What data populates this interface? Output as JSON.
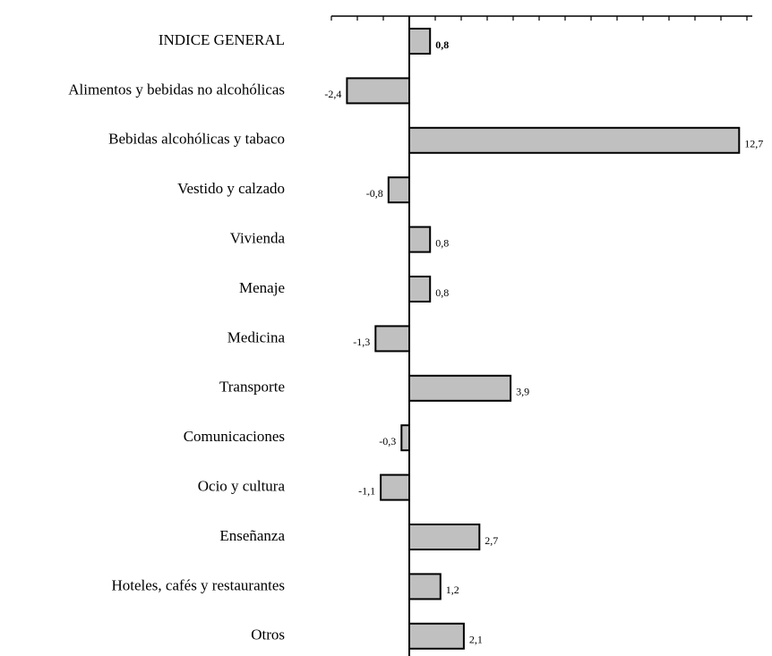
{
  "chart_data": {
    "type": "bar",
    "orientation": "horizontal",
    "categories": [
      "INDICE GENERAL",
      "Alimentos y bebidas no alcohólicas",
      "Bebidas alcohólicas y tabaco",
      "Vestido y calzado",
      "Vivienda",
      "Menaje",
      "Medicina",
      "Transporte",
      "Comunicaciones",
      "Ocio y cultura",
      "Enseñanza",
      "Hoteles, cafés y restaurantes",
      "Otros"
    ],
    "values": [
      0.8,
      -2.4,
      12.7,
      -0.8,
      0.8,
      0.8,
      -1.3,
      3.9,
      -0.3,
      -1.1,
      2.7,
      1.2,
      2.1
    ],
    "value_labels": [
      "0,8",
      "-2,4",
      "12,7",
      "-0,8",
      "0,8",
      "0,8",
      "-1,3",
      "3,9",
      "-0,3",
      "-1,1",
      "2,7",
      "1,2",
      "2,1"
    ],
    "color": "#c0c0c0",
    "xlim": [
      -3,
      13
    ],
    "xticks": [
      -3,
      -2,
      -1,
      0,
      1,
      2,
      3,
      4,
      5,
      6,
      7,
      8,
      9,
      10,
      11,
      12,
      13
    ]
  }
}
